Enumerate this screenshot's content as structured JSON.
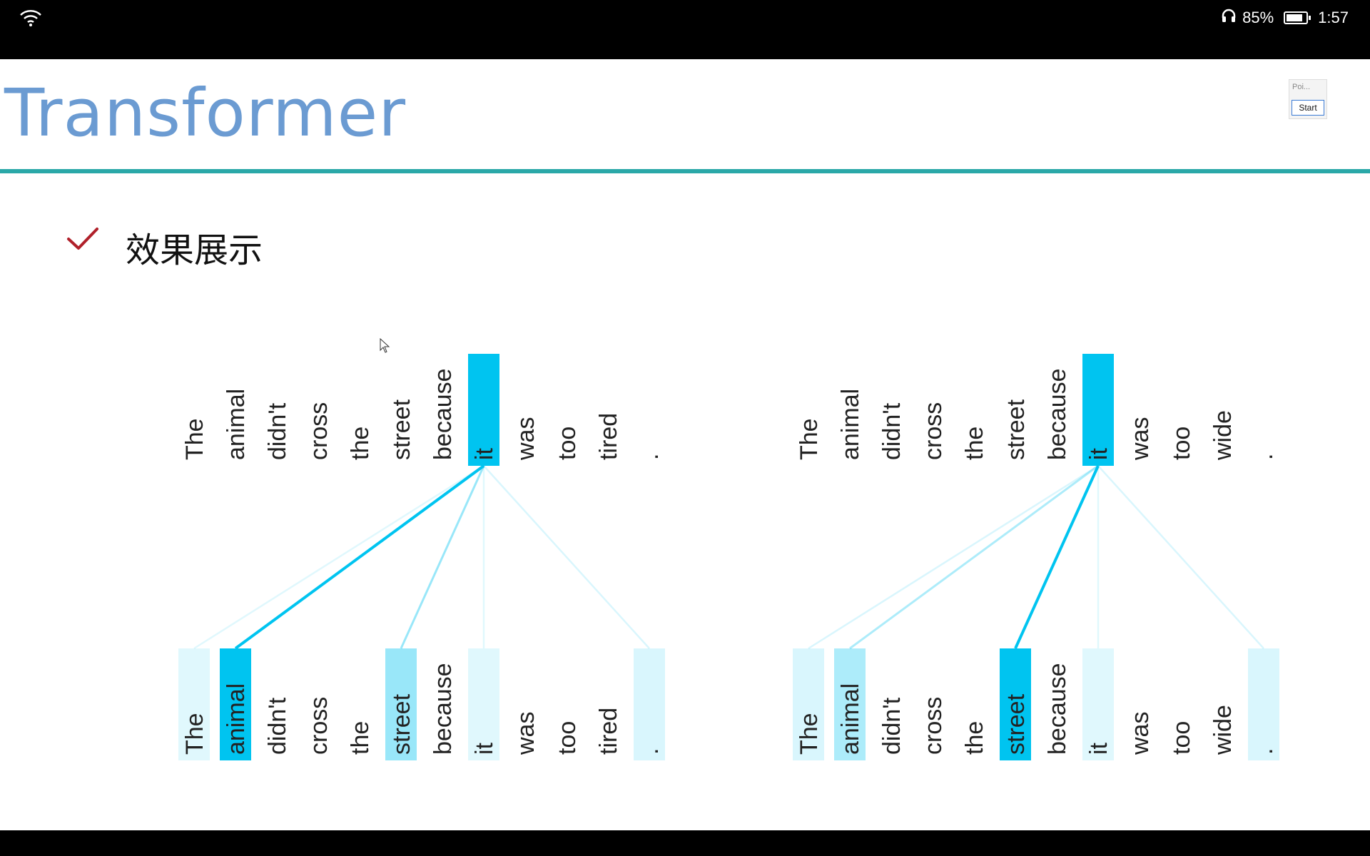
{
  "status": {
    "battery": "85%",
    "time": "1:57",
    "battery_level": 0.85
  },
  "slide": {
    "title": "Transformer",
    "subtitle": "效果展示"
  },
  "mini_window": {
    "title": "Poi...",
    "button": "Start"
  },
  "colors": {
    "title": "#6b9bd2",
    "rule": "#2aa8a8",
    "check": "#b0202a",
    "attention": "#00c4f0"
  },
  "attention_panels": [
    {
      "tokens": [
        "The",
        "animal",
        "didn't",
        "cross",
        "the",
        "street",
        "because",
        "it",
        "was",
        "too",
        "tired",
        "."
      ],
      "query_index": 7,
      "weights": [
        0.12,
        1.0,
        0.0,
        0.0,
        0.0,
        0.4,
        0.0,
        0.12,
        0.0,
        0.0,
        0.0,
        0.15
      ]
    },
    {
      "tokens": [
        "The",
        "animal",
        "didn't",
        "cross",
        "the",
        "street",
        "because",
        "it",
        "was",
        "too",
        "wide",
        "."
      ],
      "query_index": 7,
      "weights": [
        0.15,
        0.32,
        0.0,
        0.0,
        0.0,
        1.0,
        0.0,
        0.12,
        0.0,
        0.0,
        0.0,
        0.15
      ]
    }
  ]
}
